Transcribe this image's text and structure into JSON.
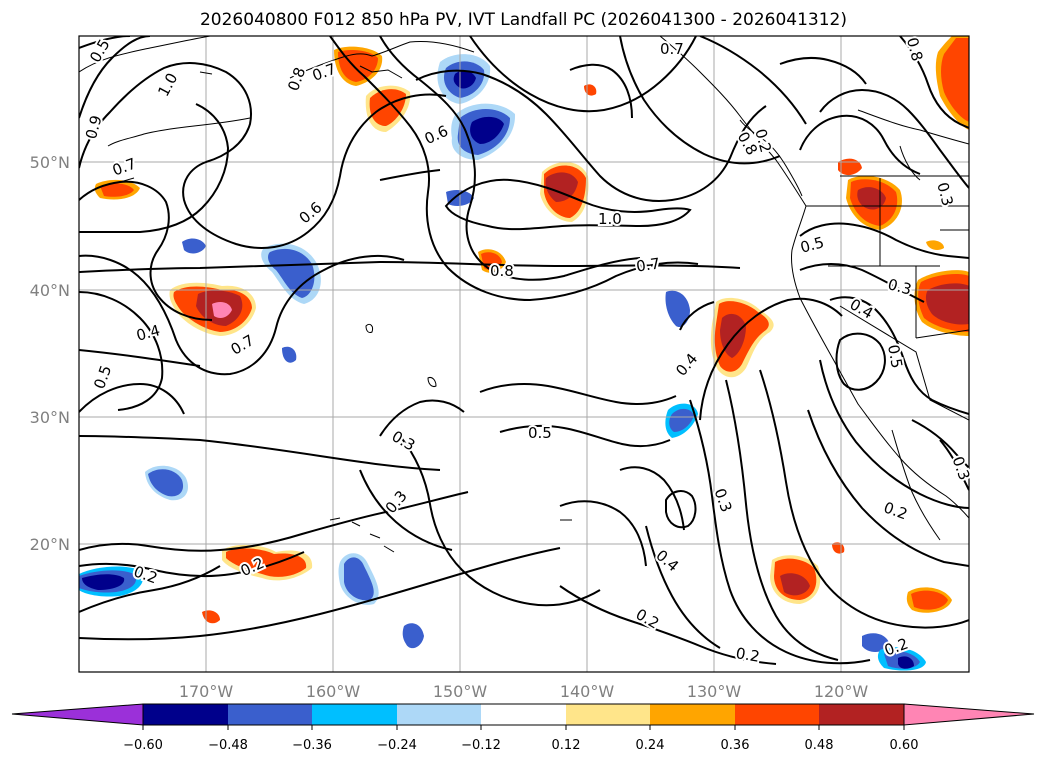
{
  "title": "2026040800 F012 850 hPa PV, IVT Landfall PC (2026041300 - 2026041312)",
  "lat_labels": [
    "50°N",
    "40°N",
    "30°N",
    "20°N"
  ],
  "lon_labels": [
    "170°W",
    "160°W",
    "150°W",
    "140°W",
    "130°W",
    "120°W"
  ],
  "colorbar": {
    "ticks": [
      "−0.60",
      "−0.48",
      "−0.36",
      "−0.24",
      "−0.12",
      "0.12",
      "0.24",
      "0.36",
      "0.48",
      "0.60"
    ],
    "colors": [
      "#9b30d9",
      "#00008b",
      "#3a5fcd",
      "#00bfff",
      "#add8f7",
      "#ffffff",
      "#ffe58a",
      "#ffa500",
      "#ff4500",
      "#b22222",
      "#ff85b4"
    ]
  },
  "contour_labels": [
    "0.5",
    "1.0",
    "0.9",
    "0.8",
    "0.7",
    "0.7",
    "0.6",
    "0.8",
    "0.7",
    "1.0",
    "0.8",
    "0.7",
    "0.6",
    "0.4",
    "0.7",
    "0.5",
    "0.3",
    "0.3",
    "0.5",
    "0.4",
    "0.3",
    "0.4",
    "0.2",
    "0.2",
    "0.2",
    "0.2",
    "0.2",
    "0.5",
    "0.3",
    "0.4",
    "0.2",
    "0.3",
    "0.8",
    "0.5",
    "0.3",
    "0.2"
  ]
}
